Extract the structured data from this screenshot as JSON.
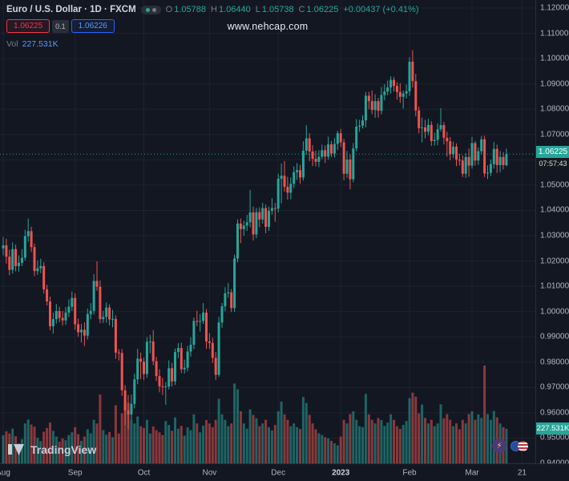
{
  "header": {
    "symbol_title": "Euro / U.S. Dollar · 1D · FXCM",
    "ohlc": {
      "o_label": "O",
      "o_value": "1.05788",
      "h_label": "H",
      "h_value": "1.06440",
      "l_label": "L",
      "l_value": "1.05738",
      "c_label": "C",
      "c_value": "1.06225",
      "change": "+0.00437 (+0.41%)"
    },
    "sell_price": "1.06225",
    "spread": "0.1",
    "buy_price": "1.06226",
    "volume_label": "Vol",
    "volume_value": "227.531K"
  },
  "watermark": "www.nehcap.com",
  "price_axis_label": {
    "price": "1.06225",
    "countdown": "07:57:43"
  },
  "volume_axis_label": "227.531K",
  "footer": {
    "logo_text": "TradingView"
  },
  "colors": {
    "background": "#131722",
    "grid": "#1e222d",
    "axis_text": "#b2b5be",
    "up": "#26a69a",
    "down": "#ef5350",
    "volume_up": "rgba(38,166,154,0.55)",
    "volume_down": "rgba(239,83,80,0.55)",
    "sell_red": "#f23645",
    "buy_blue": "#2962ff",
    "price_label_bg": "#26a69a"
  },
  "chart_data": {
    "type": "candlestick",
    "title": "Euro / U.S. Dollar",
    "interval": "1D",
    "exchange": "FXCM",
    "ylim": [
      0.94,
      1.12
    ],
    "y_tick_step": 0.01,
    "y_ticks": [
      "1.12000",
      "1.11000",
      "1.10000",
      "1.09000",
      "1.08000",
      "1.07000",
      "1.06000",
      "1.05000",
      "1.04000",
      "1.03000",
      "1.02000",
      "1.01000",
      "1.00000",
      "0.99000",
      "0.98000",
      "0.97000",
      "0.96000",
      "0.95000",
      "0.94000"
    ],
    "x_ticks": [
      {
        "label": "Aug",
        "index": 0
      },
      {
        "label": "Sep",
        "index": 23
      },
      {
        "label": "Oct",
        "index": 45
      },
      {
        "label": "Nov",
        "index": 66
      },
      {
        "label": "Dec",
        "index": 88
      },
      {
        "label": "2023",
        "index": 108
      },
      {
        "label": "Feb",
        "index": 130
      },
      {
        "label": "Mar",
        "index": 150
      },
      {
        "label": "21",
        "index": 166
      }
    ],
    "current_price": 1.06225,
    "countdown": "07:57:43",
    "current_volume_k": 227.531,
    "candles": [
      [
        1.025,
        1.0295,
        1.0222,
        1.0262
      ],
      [
        1.0262,
        1.0288,
        1.019,
        1.0217
      ],
      [
        1.0217,
        1.0245,
        1.0144,
        1.0165
      ],
      [
        1.0165,
        1.0274,
        1.015,
        1.0247
      ],
      [
        1.0247,
        1.0265,
        1.0159,
        1.018
      ],
      [
        1.018,
        1.0222,
        1.0158,
        1.0193
      ],
      [
        1.0193,
        1.0247,
        1.018,
        1.0213
      ],
      [
        1.0213,
        1.0323,
        1.0202,
        1.0298
      ],
      [
        1.0298,
        1.0368,
        1.0276,
        1.0318
      ],
      [
        1.0318,
        1.0335,
        1.0235,
        1.0255
      ],
      [
        1.0255,
        1.0269,
        1.014,
        1.016
      ],
      [
        1.016,
        1.0202,
        1.0145,
        1.0171
      ],
      [
        1.0171,
        1.0209,
        1.0152,
        1.018
      ],
      [
        1.018,
        1.0195,
        1.0071,
        1.0088
      ],
      [
        1.0088,
        1.0106,
        1.0024,
        1.004
      ],
      [
        1.004,
        1.0059,
        0.9926,
        0.9942
      ],
      [
        0.9942,
        0.9996,
        0.9913,
        0.997
      ],
      [
        0.997,
        1.003,
        0.9952,
        1.0002
      ],
      [
        1.0002,
        1.0019,
        0.9958,
        0.9975
      ],
      [
        0.9975,
        1.0002,
        0.9944,
        0.9965
      ],
      [
        0.9965,
        1.0018,
        0.9947,
        0.9996
      ],
      [
        0.9996,
        1.0048,
        0.9979,
        1.0019
      ],
      [
        1.0019,
        1.0079,
        1.0003,
        1.0054
      ],
      [
        1.0054,
        1.0072,
        0.9928,
        0.995
      ],
      [
        0.995,
        0.9972,
        0.9901,
        0.9918
      ],
      [
        0.9918,
        0.9951,
        0.9878,
        0.9928
      ],
      [
        0.9928,
        0.9957,
        0.9864,
        0.9905
      ],
      [
        0.9905,
        1.0012,
        0.989,
        0.999
      ],
      [
        0.999,
        1.0033,
        0.9971,
        1.0003
      ],
      [
        1.0003,
        1.0148,
        0.9988,
        1.0121
      ],
      [
        1.0121,
        1.0198,
        1.0082,
        1.0098
      ],
      [
        1.0098,
        1.0123,
        0.9954,
        0.997
      ],
      [
        0.997,
        1.0003,
        0.9955,
        0.9979
      ],
      [
        0.9979,
        1.0036,
        0.9956,
        1.0016
      ],
      [
        1.0016,
        1.0029,
        0.9945,
        0.9969
      ],
      [
        0.9969,
        1.0007,
        0.9938,
        0.9971
      ],
      [
        0.9971,
        0.9985,
        0.9813,
        0.9838
      ],
      [
        0.9838,
        0.9851,
        0.9807,
        0.9836
      ],
      [
        0.9836,
        0.9852,
        0.9667,
        0.9689
      ],
      [
        0.9689,
        0.9709,
        0.955,
        0.9609
      ],
      [
        0.9609,
        0.967,
        0.9536,
        0.9593
      ],
      [
        0.9593,
        0.9672,
        0.9572,
        0.9635
      ],
      [
        0.9635,
        0.9754,
        0.9618,
        0.9732
      ],
      [
        0.9732,
        0.9853,
        0.9713,
        0.9814
      ],
      [
        0.9814,
        0.9838,
        0.9733,
        0.9802
      ],
      [
        0.9802,
        0.9818,
        0.9729,
        0.9753
      ],
      [
        0.9753,
        0.9899,
        0.9738,
        0.988
      ],
      [
        0.988,
        0.9908,
        0.9835,
        0.9882
      ],
      [
        0.9882,
        0.9927,
        0.9788,
        0.9804
      ],
      [
        0.9804,
        0.9821,
        0.9726,
        0.9745
      ],
      [
        0.9745,
        0.9772,
        0.9681,
        0.9705
      ],
      [
        0.9705,
        0.9738,
        0.967,
        0.9702
      ],
      [
        0.9702,
        0.9722,
        0.9632,
        0.9704
      ],
      [
        0.9704,
        0.9807,
        0.9692,
        0.9776
      ],
      [
        0.9776,
        0.9797,
        0.9704,
        0.9724
      ],
      [
        0.9724,
        0.9854,
        0.971,
        0.984
      ],
      [
        0.984,
        0.9875,
        0.9816,
        0.9856
      ],
      [
        0.9856,
        0.9877,
        0.9757,
        0.9772
      ],
      [
        0.9772,
        0.981,
        0.9755,
        0.9778
      ],
      [
        0.9778,
        0.9864,
        0.9764,
        0.9842
      ],
      [
        0.9842,
        0.9899,
        0.9822,
        0.9869
      ],
      [
        0.9869,
        0.9976,
        0.9851,
        0.9963
      ],
      [
        0.9963,
        1.0003,
        0.9942,
        0.9961
      ],
      [
        0.9961,
        0.999,
        0.9921,
        0.9963
      ],
      [
        0.9963,
        1.0034,
        0.9951,
        0.9996
      ],
      [
        0.9996,
        1.001,
        0.9853,
        0.9882
      ],
      [
        0.9882,
        0.9915,
        0.9853,
        0.9876
      ],
      [
        0.9876,
        0.9896,
        0.9797,
        0.9817
      ],
      [
        0.9817,
        0.984,
        0.973,
        0.975
      ],
      [
        0.975,
        0.9979,
        0.9741,
        0.9957
      ],
      [
        0.9957,
        1.0034,
        0.9936,
        1.0021
      ],
      [
        1.0021,
        1.0096,
        1.0001,
        1.0072
      ],
      [
        1.0072,
        1.0113,
        1.0055,
        1.0076
      ],
      [
        1.0076,
        1.0089,
        0.9998,
        1.0014
      ],
      [
        1.0014,
        1.0225,
        0.9999,
        1.021
      ],
      [
        1.021,
        1.0364,
        1.0195,
        1.0348
      ],
      [
        1.0348,
        1.0368,
        1.0271,
        1.0326
      ],
      [
        1.0326,
        1.0359,
        1.03,
        1.034
      ],
      [
        1.034,
        1.0382,
        1.0319,
        1.0353
      ],
      [
        1.0353,
        1.0481,
        1.0333,
        1.0392
      ],
      [
        1.0392,
        1.0415,
        1.0281,
        1.0305
      ],
      [
        1.0305,
        1.041,
        1.029,
        1.0393
      ],
      [
        1.0393,
        1.0412,
        1.0333,
        1.0364
      ],
      [
        1.0364,
        1.043,
        1.0348,
        1.0409
      ],
      [
        1.0409,
        1.0423,
        1.031,
        1.0335
      ],
      [
        1.0335,
        1.0415,
        1.0319,
        1.0398
      ],
      [
        1.0398,
        1.0449,
        1.0383,
        1.0409
      ],
      [
        1.0409,
        1.0429,
        1.0355,
        1.0407
      ],
      [
        1.0407,
        1.0545,
        1.0392,
        1.0525
      ],
      [
        1.0525,
        1.0585,
        1.0428,
        1.0537
      ],
      [
        1.0537,
        1.0595,
        1.0474,
        1.0493
      ],
      [
        1.0493,
        1.0533,
        1.0443,
        1.047
      ],
      [
        1.047,
        1.053,
        1.0444,
        1.0505
      ],
      [
        1.0505,
        1.0574,
        1.0489,
        1.0551
      ],
      [
        1.0551,
        1.0587,
        1.0521,
        1.0559
      ],
      [
        1.0559,
        1.058,
        1.0506,
        1.053
      ],
      [
        1.053,
        1.0673,
        1.0518,
        1.0636
      ],
      [
        1.0636,
        1.0737,
        1.062,
        1.0685
      ],
      [
        1.0685,
        1.0705,
        1.0594,
        1.0633
      ],
      [
        1.0633,
        1.0658,
        1.0575,
        1.0604
      ],
      [
        1.0604,
        1.0637,
        1.0574,
        1.0592
      ],
      [
        1.0592,
        1.0638,
        1.0571,
        1.0612
      ],
      [
        1.0612,
        1.066,
        1.0602,
        1.0638
      ],
      [
        1.0638,
        1.0657,
        1.0588,
        1.0613
      ],
      [
        1.0613,
        1.0692,
        1.0601,
        1.0661
      ],
      [
        1.0661,
        1.0675,
        1.0611,
        1.0625
      ],
      [
        1.0625,
        1.0686,
        1.0609,
        1.0663
      ],
      [
        1.0663,
        1.0715,
        1.0639,
        1.0705
      ],
      [
        1.0705,
        1.0722,
        1.065,
        1.0669
      ],
      [
        1.0669,
        1.0683,
        1.0519,
        1.0545
      ],
      [
        1.0545,
        1.0635,
        1.0529,
        1.0601
      ],
      [
        1.0601,
        1.0621,
        1.0483,
        1.0523
      ],
      [
        1.0523,
        1.0666,
        1.0511,
        1.0645
      ],
      [
        1.0645,
        1.0761,
        1.0634,
        1.0731
      ],
      [
        1.0731,
        1.0758,
        1.0711,
        1.0735
      ],
      [
        1.0735,
        1.0776,
        1.0723,
        1.0756
      ],
      [
        1.0756,
        1.0868,
        1.0729,
        1.0853
      ],
      [
        1.0853,
        1.0869,
        1.08,
        1.0832
      ],
      [
        1.0832,
        1.0874,
        1.078,
        1.0797
      ],
      [
        1.0797,
        1.0859,
        1.0766,
        1.0832
      ],
      [
        1.0832,
        1.0845,
        1.0767,
        1.0794
      ],
      [
        1.0794,
        1.0887,
        1.078,
        1.0856
      ],
      [
        1.0856,
        1.0899,
        1.0835,
        1.087
      ],
      [
        1.087,
        1.0913,
        1.0855,
        1.0886
      ],
      [
        1.0886,
        1.093,
        1.0862,
        1.0916
      ],
      [
        1.0916,
        1.0927,
        1.087,
        1.0892
      ],
      [
        1.0892,
        1.0907,
        1.0838,
        1.0868
      ],
      [
        1.0868,
        1.0903,
        1.0825,
        1.0849
      ],
      [
        1.0849,
        1.0874,
        1.0802,
        1.0862
      ],
      [
        1.0862,
        1.0898,
        1.0842,
        1.0871
      ],
      [
        1.0871,
        1.1005,
        1.0852,
        1.0988
      ],
      [
        1.0988,
        1.1033,
        1.0885,
        1.0911
      ],
      [
        1.0911,
        1.094,
        1.0772,
        1.0795
      ],
      [
        1.0795,
        1.081,
        1.0705,
        1.0725
      ],
      [
        1.0725,
        1.0767,
        1.0669,
        1.0728
      ],
      [
        1.0728,
        1.0758,
        1.0685,
        1.0711
      ],
      [
        1.0711,
        1.0762,
        1.0697,
        1.0738
      ],
      [
        1.0738,
        1.0752,
        1.0655,
        1.0674
      ],
      [
        1.0674,
        1.0707,
        1.0656,
        1.0679
      ],
      [
        1.0679,
        1.0744,
        1.0658,
        1.0721
      ],
      [
        1.0721,
        1.0804,
        1.0711,
        1.0737
      ],
      [
        1.0737,
        1.0749,
        1.0661,
        1.0687
      ],
      [
        1.0687,
        1.0711,
        1.0613,
        1.0673
      ],
      [
        1.0673,
        1.069,
        1.0598,
        1.0622
      ],
      [
        1.0622,
        1.0672,
        1.0607,
        1.0652
      ],
      [
        1.0652,
        1.0665,
        1.0575,
        1.0601
      ],
      [
        1.0601,
        1.0624,
        1.0577,
        1.0597
      ],
      [
        1.0597,
        1.0617,
        1.0532,
        1.0545
      ],
      [
        1.0545,
        1.0626,
        1.0528,
        1.0611
      ],
      [
        1.0611,
        1.0645,
        1.0533,
        1.0577
      ],
      [
        1.0577,
        1.0691,
        1.0565,
        1.0666
      ],
      [
        1.0666,
        1.0674,
        1.0577,
        1.0597
      ],
      [
        1.0597,
        1.0649,
        1.058,
        1.0634
      ],
      [
        1.0634,
        1.0694,
        1.062,
        1.0681
      ],
      [
        1.0681,
        1.0695,
        1.0532,
        1.0546
      ],
      [
        1.0546,
        1.0578,
        1.0524,
        1.0549
      ],
      [
        1.0549,
        1.0601,
        1.0536,
        1.0583
      ],
      [
        1.0583,
        1.067,
        1.0565,
        1.0643
      ],
      [
        1.0643,
        1.066,
        1.0548,
        1.0579
      ],
      [
        1.0579,
        1.0635,
        1.0551,
        1.0611
      ],
      [
        1.0611,
        1.063,
        1.0562,
        1.0579
      ],
      [
        1.05788,
        1.0644,
        1.05738,
        1.06225
      ]
    ],
    "volumes_k": [
      185,
      210,
      196,
      228,
      178,
      132,
      158,
      262,
      288,
      255,
      241,
      168,
      146,
      208,
      232,
      268,
      214,
      176,
      142,
      164,
      152,
      186,
      204,
      238,
      192,
      148,
      176,
      224,
      196,
      286,
      262,
      452,
      218,
      188,
      206,
      172,
      382,
      196,
      328,
      412,
      398,
      286,
      262,
      308,
      244,
      232,
      286,
      196,
      242,
      218,
      204,
      186,
      278,
      252,
      214,
      302,
      228,
      246,
      182,
      236,
      218,
      322,
      262,
      204,
      248,
      284,
      262,
      238,
      286,
      424,
      322,
      286,
      244,
      262,
      524,
      486,
      342,
      262,
      228,
      354,
      318,
      296,
      244,
      262,
      286,
      238,
      216,
      252,
      342,
      406,
      322,
      286,
      244,
      262,
      238,
      226,
      436,
      396,
      318,
      262,
      224,
      198,
      186,
      172,
      164,
      148,
      132,
      118,
      176,
      286,
      262,
      324,
      342,
      286,
      244,
      238,
      456,
      322,
      286,
      262,
      298,
      284,
      246,
      268,
      322,
      286,
      244,
      226,
      252,
      278,
      428,
      464,
      438,
      328,
      386,
      298,
      262,
      286,
      244,
      262,
      388,
      296,
      324,
      286,
      244,
      262,
      224,
      286,
      262,
      324,
      342,
      286,
      322,
      298,
      642,
      324,
      286,
      344,
      302,
      262,
      238,
      227.531
    ]
  }
}
